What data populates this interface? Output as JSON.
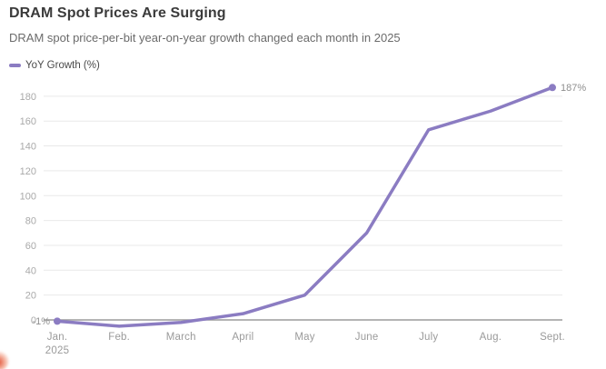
{
  "chart_data": {
    "type": "line",
    "title": "DRAM Spot Prices Are Surging",
    "subtitle": "DRAM spot price-per-bit year-on-year growth changed each month in 2025",
    "categories": [
      {
        "label": "Jan.",
        "sub_label": "2025"
      },
      {
        "label": "Feb."
      },
      {
        "label": "March"
      },
      {
        "label": "April"
      },
      {
        "label": "May"
      },
      {
        "label": "June"
      },
      {
        "label": "July"
      },
      {
        "label": "Aug."
      },
      {
        "label": "Sept."
      }
    ],
    "series": [
      {
        "name": "YoY Growth (%)",
        "values": [
          -1,
          -5,
          -2,
          5,
          20,
          70,
          153,
          168,
          187
        ]
      }
    ],
    "yticks": [
      0,
      20,
      40,
      60,
      80,
      100,
      120,
      140,
      160,
      180
    ],
    "ylim": [
      -10,
      195
    ],
    "xlabel": "",
    "ylabel": "",
    "grid": true,
    "legend_position": "top-left",
    "markers": "endpoints-only",
    "annotations": [
      {
        "index": 0,
        "text": "-1%",
        "side": "left"
      },
      {
        "index": 8,
        "text": "187%",
        "side": "right"
      }
    ]
  },
  "colors": {
    "line": "#8b7cc2",
    "grid": "#e9e9e9",
    "zero_line": "#9c9c9c",
    "tick_text": "#a9a9a9",
    "xlabel_text": "#9a9a9a",
    "annotation_text": "#8f8f8f",
    "title_text": "#3b3b3b",
    "subtitle_text": "#6b6b6b",
    "legend_text": "#4a4a4a",
    "logo_red": "#df3e1e"
  }
}
